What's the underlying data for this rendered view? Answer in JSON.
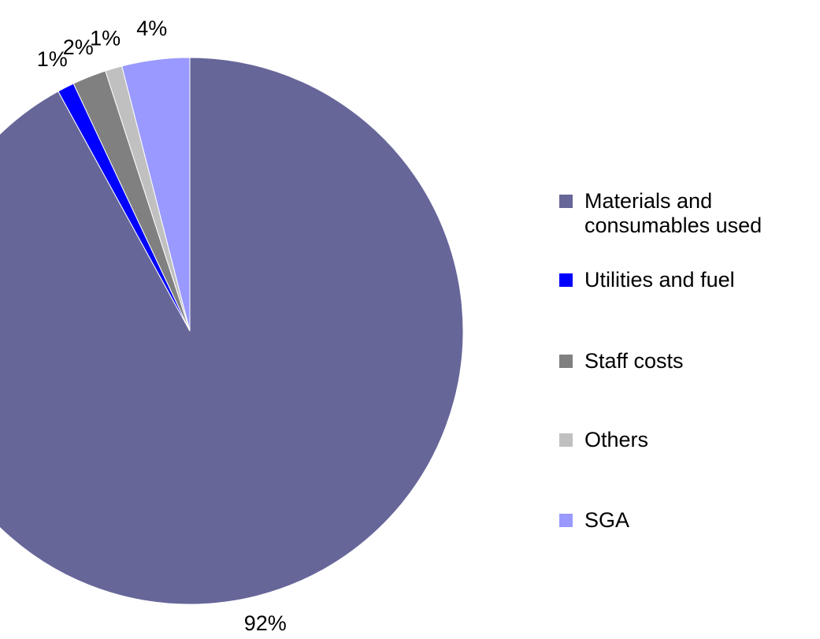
{
  "chart_data": {
    "type": "pie",
    "categories": [
      "Materials and consumables used",
      "Utilities and fuel",
      "Staff costs",
      "Others",
      "SGA"
    ],
    "values": [
      92,
      1,
      2,
      1,
      4
    ],
    "value_labels": [
      "92%",
      "1%",
      "2%",
      "1%",
      "4%"
    ],
    "colors": [
      "#666699",
      "#0000ff",
      "#808080",
      "#c0c0c0",
      "#9999ff"
    ],
    "legend": "right"
  }
}
